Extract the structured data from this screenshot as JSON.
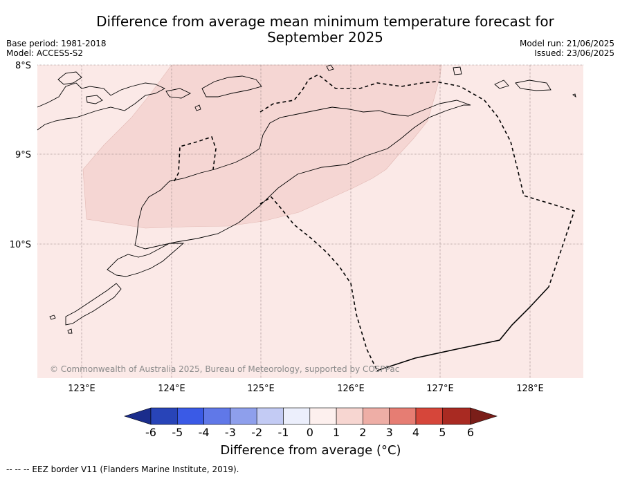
{
  "header": {
    "title_line1": "Difference from average mean minimum temperature forecast for",
    "title_line2": "September 2025",
    "base_period": "Base period: 1981-2018",
    "model": "Model: ACCESS-S2",
    "model_run": "Model run: 21/06/2025",
    "issued": "Issued: 23/06/2025"
  },
  "map": {
    "lat_labels": [
      "8°S",
      "9°S",
      "10°S"
    ],
    "lon_labels": [
      "123°E",
      "124°E",
      "125°E",
      "126°E",
      "127°E",
      "128°E"
    ],
    "copyright": "© Commonwealth of Australia 2025, Bureau of Meteorology, supported by COSPPac",
    "background_color": "#fbe9e7",
    "anomaly_region_color": "#f5d6d3"
  },
  "colorbar": {
    "ticks": [
      "-6",
      "-5",
      "-4",
      "-3",
      "-2",
      "-1",
      "0",
      "1",
      "2",
      "3",
      "4",
      "5",
      "6"
    ],
    "colors": [
      "#1b2d8c",
      "#2844b8",
      "#3a5ae6",
      "#6078e8",
      "#8e9fec",
      "#c3cbf4",
      "#eceffc",
      "#fdf0ee",
      "#f7d6d1",
      "#eeaea6",
      "#e67d73",
      "#d6463a",
      "#a92a22",
      "#7a1e19"
    ],
    "label": "Difference from average (°C)"
  },
  "footnote": "--  --  -- EEZ border V11 (Flanders Marine Institute, 2019)."
}
